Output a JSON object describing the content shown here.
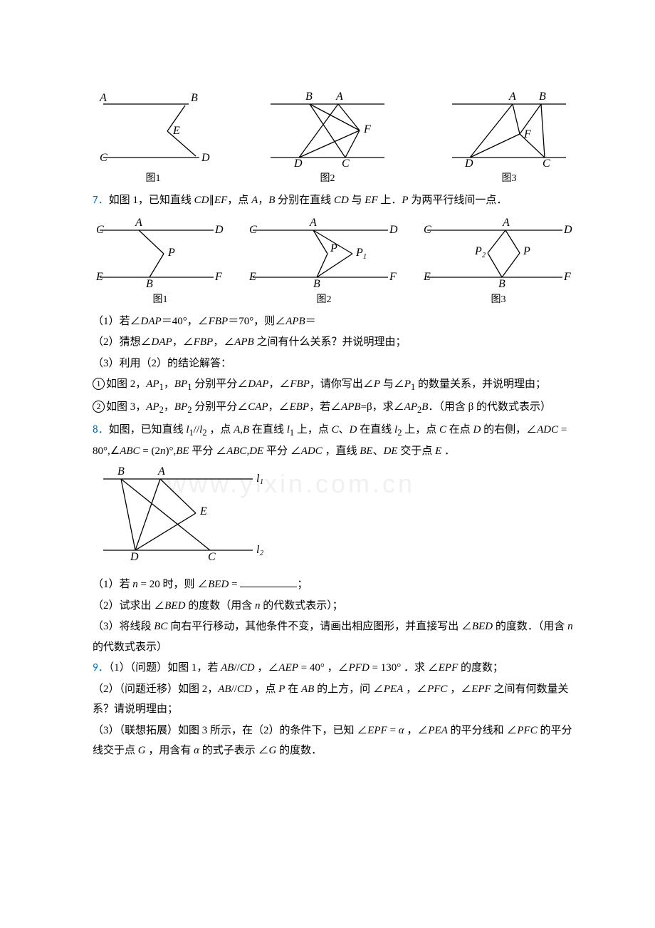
{
  "watermark": "www.yixin.com.cn",
  "fig_row1": {
    "background": "#ffffff",
    "label_color": "#000000",
    "cap1": "图1",
    "cap2": "图2",
    "cap3": "图3",
    "fig1": {
      "pts": {
        "A": "A",
        "B": "B",
        "C": "C",
        "D": "D",
        "E": "E"
      }
    },
    "fig2": {
      "pts": {
        "A": "A",
        "B": "B",
        "C": "C",
        "D": "D",
        "F": "F"
      }
    },
    "fig3": {
      "pts": {
        "A": "A",
        "B": "B",
        "C": "C",
        "D": "D",
        "F": "F"
      }
    }
  },
  "q7": {
    "num": "7．",
    "stem": "如图 1，已知直线 <span class='it'>CD</span>∥<span class='it'>EF</span>，点 <span class='it'>A</span>，<span class='it'>B</span> 分别在直线 <span class='it'>CD</span> 与 <span class='it'>EF</span> 上．<span class='it'>P</span> 为两平行线间一点．",
    "cap1": "图1",
    "cap2": "图2",
    "cap3": "图3",
    "fig_pts": {
      "A": "A",
      "B": "B",
      "C": "C",
      "D": "D",
      "E": "E",
      "F": "F",
      "P": "P",
      "P1": "P",
      "P2": "P"
    },
    "sub1": "（1）若∠<span class='it'>DAP</span>＝40°，∠<span class='it'>FBP</span>＝70°，则∠<span class='it'>APB</span>＝",
    "sub2": "（2）猜想∠<span class='it'>DAP</span>，∠<span class='it'>FBP</span>，∠<span class='it'>APB</span> 之间有什么关系？并说明理由；",
    "sub3": "（3）利用（2）的结论解答：",
    "c1": "如图 2，<span class='it'>AP</span><sub>1</sub>，<span class='it'>BP</span><sub>1</sub> 分别平分∠<span class='it'>DAP</span>，∠<span class='it'>FBP</span>，请你写出∠<span class='it'>P</span> 与∠<span class='it'>P</span><sub>1</sub> 的数量关系，并说明理由；",
    "c2": "如图 3，<span class='it'>AP</span><sub>2</sub>，<span class='it'>BP</span><sub>2</sub> 分别平分∠<span class='it'>CAP</span>，∠<span class='it'>EBP</span>，若∠<span class='it'>APB</span>=β，求∠<span class='it'>AP</span><sub>2</sub><span class='it'>B</span>．（用含 β 的代数式表示）"
  },
  "q8": {
    "num": "8．",
    "stem": "如图，已知直线 <span class='it'>l</span><sub>1</sub>//<span class='it'>l</span><sub>2</sub> ，点 <span class='it'>A</span>,<span class='it'>B</span> 在直线 <span class='it'>l</span><sub>1</sub> 上，点 <span class='it'>C</span>、<span class='it'>D</span> 在直线 <span class='it'>l</span><sub>2</sub> 上，点 <span class='it'>C</span> 在点 <span class='it'>D</span> 的右侧，∠<span class='it'>ADC</span> = 80°,∠<span class='it'>ABC</span> = (2<span class='it'>n</span>)°,<span class='it'>BE</span> 平分 ∠<span class='it'>ABC</span>,<span class='it'>DE</span> 平分 ∠<span class='it'>ADC</span> ，直线 <span class='it'>BE</span>、<span class='it'>DE</span> 交于点 <span class='it'>E</span> ．",
    "fig_labels": {
      "A": "A",
      "B": "B",
      "C": "C",
      "D": "D",
      "E": "E",
      "l1": "l₁",
      "l2": "l₂"
    },
    "sub1": "（1）若 <span class='it'>n</span> = 20 时，则 ∠<span class='it'>BED</span> = ",
    "sub1b": "；",
    "sub2": "（2）试求出 ∠<span class='it'>BED</span> 的度数（用含 <span class='it'>n</span> 的代数式表示）；",
    "sub3": "（3）将线段 <span class='it'>BC</span> 向右平行移动，其他条件不变，请画出相应图形，并直接写出 ∠<span class='it'>BED</span> 的度数．（用含 <span class='it'>n</span> 的代数式表示）"
  },
  "q9": {
    "num": "9．",
    "p1": "（1）（问题）如图 1，若 <span class='it'>AB</span>//<span class='it'>CD</span> ，∠<span class='it'>AEP</span> = 40° ，∠<span class='it'>PFD</span> = 130° ．求 ∠<span class='it'>EPF</span> 的度数；",
    "p2": "（2）（问题迁移）如图 2，<span class='it'>AB</span>//<span class='it'>CD</span> ，点 <span class='it'>P</span> 在 <span class='it'>AB</span> 的上方，问 ∠<span class='it'>PEA</span> ，∠<span class='it'>PFC</span> ，∠<span class='it'>EPF</span> 之间有何数量关系？请说明理由；",
    "p3": "（3）（联想拓展）如图 3 所示，在（2）的条件下，已知 ∠<span class='it'>EPF</span> = <span class='it'>α</span> ，∠<span class='it'>PEA</span> 的平分线和 ∠<span class='it'>PFC</span> 的平分线交于点 <span class='it'>G</span> ，用含有 <span class='it'>α</span> 的式子表示 ∠<span class='it'>G</span> 的度数．"
  }
}
